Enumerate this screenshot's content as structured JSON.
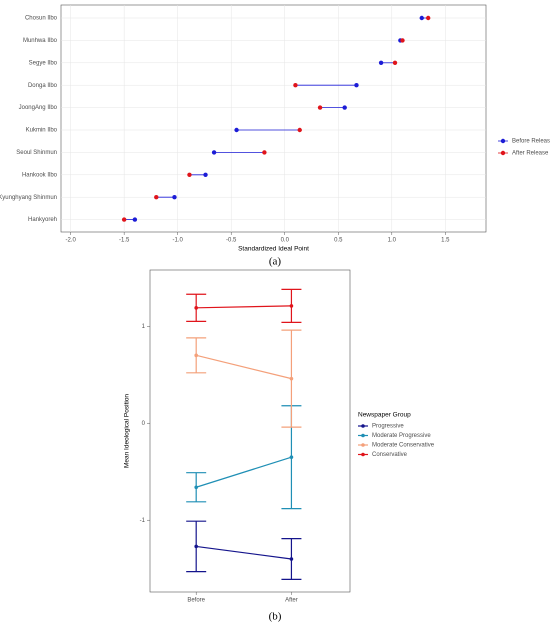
{
  "chart_data": [
    {
      "type": "dumbbell",
      "categories": [
        "Chosun Ilbo",
        "Munhwa Ilbo",
        "Segye Ilbo",
        "Donga Ilbo",
        "JoongAng Ilbo",
        "Kukmin Ilbo",
        "Seoul Shinmun",
        "Hankook Ilbo",
        "Kyunghyang Shinmun",
        "Hankyoreh"
      ],
      "series": [
        {
          "name": "Before Release",
          "color": "#1c1cd6",
          "values": [
            1.28,
            1.08,
            0.9,
            0.67,
            0.56,
            -0.45,
            -0.66,
            -0.74,
            -1.03,
            -1.4
          ]
        },
        {
          "name": "After Release",
          "color": "#e0141b",
          "values": [
            1.34,
            1.1,
            1.03,
            0.1,
            0.33,
            0.14,
            -0.19,
            -0.89,
            -1.2,
            -1.5
          ]
        }
      ],
      "xlim": [
        -2.09,
        1.88
      ],
      "xticks": [
        {
          "value": -2,
          "label": "-2.0"
        },
        -1.5,
        {
          "value": -1,
          "label": "-1.0"
        },
        -0.5,
        {
          "value": 0,
          "label": "0.0"
        },
        0.5,
        {
          "value": 1,
          "label": "1.0"
        },
        1.5
      ],
      "xlabel": "Standardized Ideal Point",
      "grid": true,
      "legend": "right",
      "caption": "(a)"
    },
    {
      "type": "line",
      "categories": [
        "Before",
        "After"
      ],
      "series": [
        {
          "name": "Progressive",
          "color": "#14148c",
          "values": [
            -1.27,
            -1.4
          ],
          "errors": [
            0.26,
            0.21
          ]
        },
        {
          "name": "Moderate Progressive",
          "color": "#1f8fb5",
          "values": [
            -0.66,
            -0.35
          ],
          "errors": [
            0.15,
            0.53
          ]
        },
        {
          "name": "Moderate Conservative",
          "color": "#f4a07a",
          "values": [
            0.7,
            0.46
          ],
          "errors": [
            0.18,
            0.5
          ]
        },
        {
          "name": "Conservative",
          "color": "#e0141b",
          "values": [
            1.19,
            1.21
          ],
          "errors": [
            0.14,
            0.17
          ]
        }
      ],
      "ylim": [
        -1.74,
        1.58
      ],
      "yticks": [
        -1,
        0,
        1
      ],
      "ylabel": "Mean Ideological Position",
      "legend_title": "Newspaper Group",
      "legend": "right",
      "caption": "(b)"
    }
  ]
}
